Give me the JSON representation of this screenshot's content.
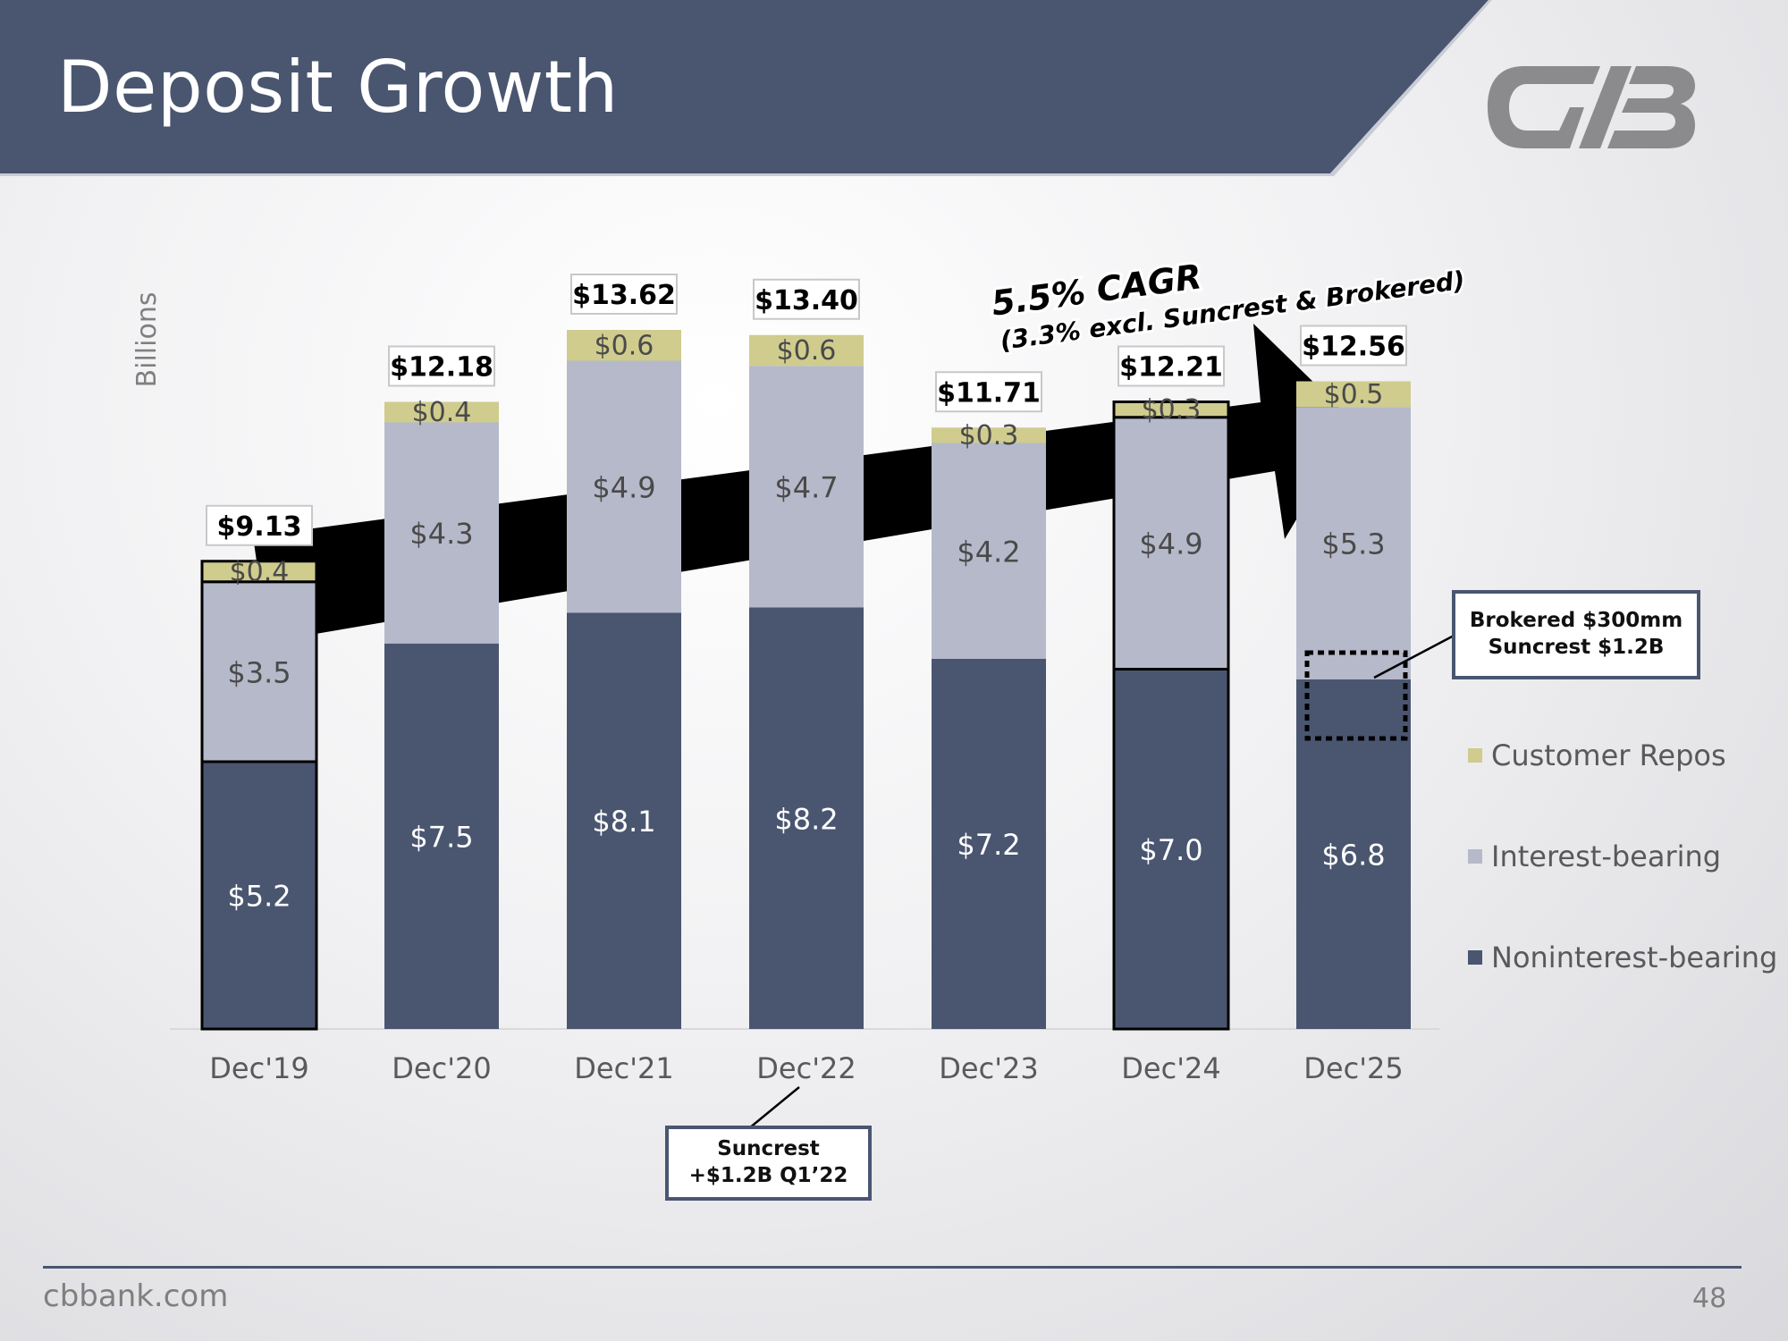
{
  "header": {
    "title": "Deposit Growth"
  },
  "logo": {
    "name": "CVB logo"
  },
  "colors": {
    "header_band": "#4a5670",
    "noninterest": "#4a5670",
    "interest": "#b6b9ca",
    "repos": "#cfcc8e",
    "arrow": "#000000",
    "note_border": "#4a5670"
  },
  "chart_data": {
    "type": "bar",
    "stacked": true,
    "ylabel": "Billions",
    "ylim": [
      0,
      14.5
    ],
    "categories": [
      "Dec'19",
      "Dec'20",
      "Dec'21",
      "Dec'22",
      "Dec'23",
      "Dec'24",
      "Dec'25"
    ],
    "series": [
      {
        "name": "Noninterest-bearing",
        "values": [
          5.2,
          7.5,
          8.1,
          8.2,
          7.2,
          7.0,
          6.8
        ],
        "labels": [
          "$5.2",
          "$7.5",
          "$8.1",
          "$8.2",
          "$7.2",
          "$7.0",
          "$6.8"
        ]
      },
      {
        "name": "Interest-bearing",
        "values": [
          3.5,
          4.3,
          4.9,
          4.7,
          4.2,
          4.9,
          5.3
        ],
        "labels": [
          "$3.5",
          "$4.3",
          "$4.9",
          "$4.7",
          "$4.2",
          "$4.9",
          "$5.3"
        ]
      },
      {
        "name": "Customer Repos",
        "values": [
          0.4,
          0.4,
          0.6,
          0.6,
          0.3,
          0.3,
          0.5
        ],
        "labels": [
          "$0.4",
          "$0.4",
          "$0.6",
          "$0.6",
          "$0.3",
          "$0.3",
          "$0.5"
        ]
      }
    ],
    "totals": [
      "$9.13",
      "$12.18",
      "$13.62",
      "$13.40",
      "$11.71",
      "$12.21",
      "$12.56"
    ],
    "outlined_bars": [
      "Dec'19",
      "Dec'24"
    ],
    "legend_position": "right",
    "grid": false,
    "annotations": {
      "cagr_line1": "5.5% CAGR",
      "cagr_line2": "(3.3% excl. Suncrest & Brokered)",
      "brokered_note": [
        "Brokered $300mm",
        "Suncrest $1.2B"
      ],
      "suncrest_note": [
        "Suncrest",
        "+$1.2B Q1’22"
      ]
    }
  },
  "footer": {
    "url": "cbbank.com",
    "page_number": "48"
  }
}
